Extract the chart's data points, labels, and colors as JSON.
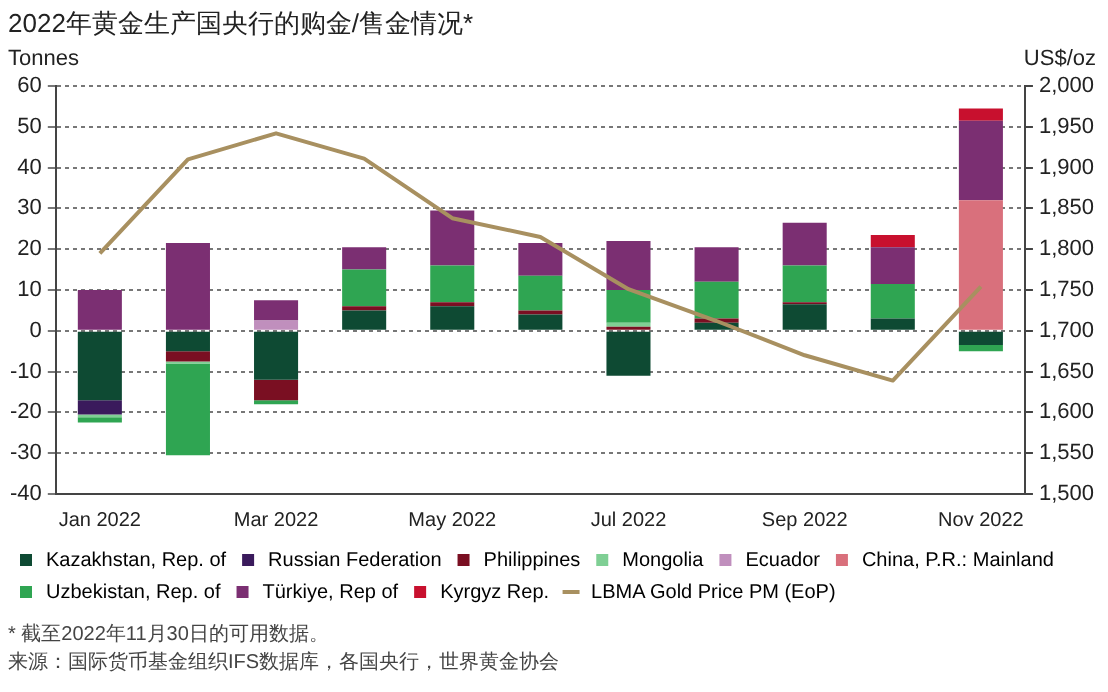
{
  "chart_data": {
    "type": "bar",
    "title": "2022年黄金生产国央行的购金/售金情况*",
    "ylabel": "Tonnes",
    "y2label": "US$/oz",
    "categories": [
      "Jan 2022",
      null,
      "Mar 2022",
      null,
      "May 2022",
      null,
      "Jul 2022",
      null,
      "Sep 2022",
      null,
      "Nov 2022"
    ],
    "stacked": true,
    "series": [
      {
        "name": "Kazakhstan, Rep. of",
        "color": "#0e4a33",
        "values": [
          -17,
          -5,
          -12,
          5,
          6,
          4,
          -11,
          2,
          6.5,
          3,
          -3.5
        ]
      },
      {
        "name": "Russian Federation",
        "color": "#3a1a5c",
        "values": [
          -3.5,
          null,
          null,
          null,
          null,
          null,
          null,
          null,
          null,
          null,
          null
        ]
      },
      {
        "name": "Philippines",
        "color": "#7a0f22",
        "values": [
          null,
          -2.5,
          -5,
          1,
          1,
          1,
          1,
          1,
          0.5,
          null,
          null
        ]
      },
      {
        "name": "Mongolia",
        "color": "#7fcf94",
        "values": [
          -0.7,
          -0.5,
          null,
          null,
          null,
          null,
          1,
          null,
          null,
          null,
          null
        ]
      },
      {
        "name": "Ecuador",
        "color": "#c08fbd",
        "values": [
          null,
          null,
          2.5,
          null,
          null,
          null,
          null,
          null,
          null,
          null,
          null
        ]
      },
      {
        "name": "China, P.R.: Mainland",
        "color": "#d9707c",
        "values": [
          null,
          null,
          null,
          null,
          null,
          null,
          null,
          null,
          null,
          null,
          32
        ]
      },
      {
        "name": "Uzbekistan, Rep. of",
        "color": "#2fa552",
        "values": [
          -1.3,
          -22.5,
          -1,
          9,
          9,
          8.5,
          8,
          9,
          9,
          8.5,
          -1.5
        ]
      },
      {
        "name": "Türkiye, Rep of",
        "color": "#7b2f72",
        "values": [
          10,
          21.5,
          5,
          5.5,
          13.5,
          8,
          12,
          8.5,
          10.5,
          9,
          19.5
        ]
      },
      {
        "name": "Kyrgyz Rep.",
        "color": "#c8102e",
        "values": [
          null,
          null,
          null,
          null,
          null,
          null,
          null,
          null,
          null,
          3,
          3
        ]
      },
      {
        "name": "LBMA Gold Price PM (EoP)",
        "type": "line",
        "axis": "y2",
        "color": "#a89060",
        "values": [
          1795,
          1910,
          1942,
          1911,
          1838,
          1815,
          1751,
          1712,
          1670,
          1639,
          1754
        ]
      }
    ],
    "ylim": [
      -40,
      60
    ],
    "yticks": [
      -40,
      -30,
      -20,
      -10,
      0,
      10,
      20,
      30,
      40,
      50,
      60
    ],
    "y2lim": [
      1500,
      2000
    ],
    "y2ticks": [
      {
        "value": 1500,
        "label": "1,500"
      },
      {
        "value": 1550,
        "label": "1,550"
      },
      {
        "value": 1600,
        "label": "1,600"
      },
      {
        "value": 1650,
        "label": "1,650"
      },
      {
        "value": 1700,
        "label": "1,700"
      },
      {
        "value": 1750,
        "label": "1,750"
      },
      {
        "value": 1800,
        "label": "1,800"
      },
      {
        "value": 1850,
        "label": "1,850"
      },
      {
        "value": 1900,
        "label": "1,900"
      },
      {
        "value": 1950,
        "label": "1,950"
      },
      {
        "value": 2000,
        "label": "2,000"
      }
    ],
    "grid": "y",
    "legend": "bottom",
    "marker": "none",
    "annotations": [
      "* 截至2022年11月30日的可用数据。",
      "来源：国际货币基金组织IFS数据库，各国央行，世界黄金协会"
    ]
  }
}
